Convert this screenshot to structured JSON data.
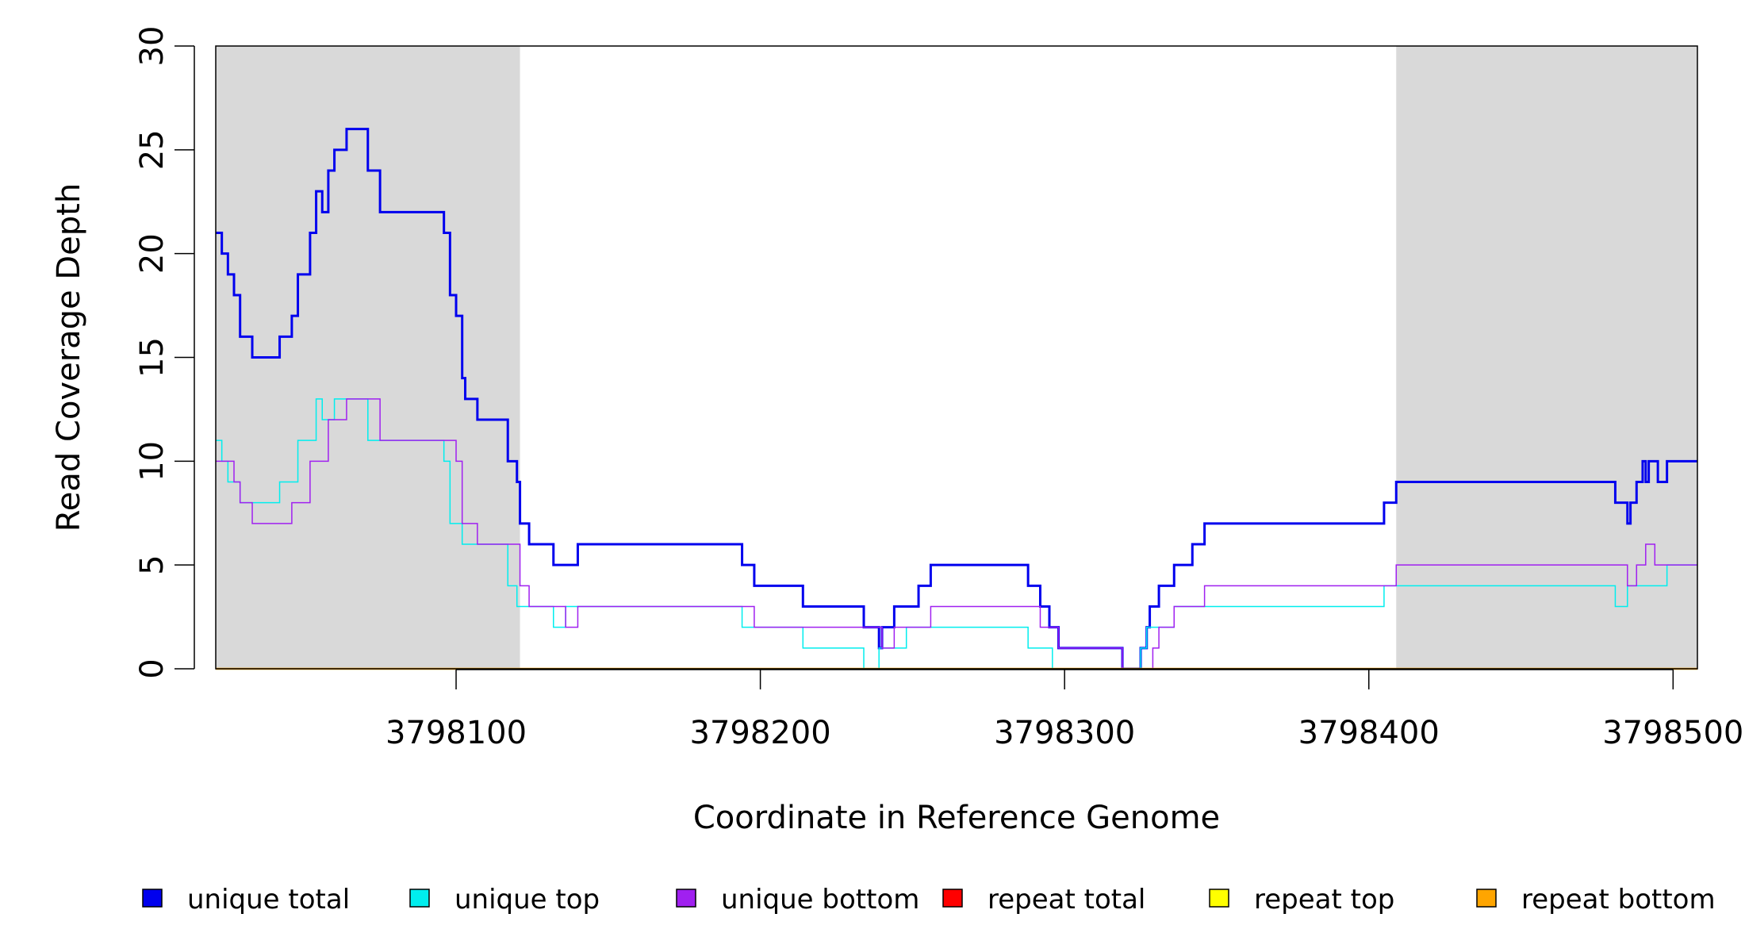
{
  "chart_data": {
    "type": "line",
    "step": true,
    "title": "",
    "xlabel": "Coordinate in Reference Genome",
    "ylabel": "Read Coverage Depth",
    "xlim": [
      3798021,
      3798508
    ],
    "ylim": [
      0,
      30
    ],
    "x_ticks": [
      3798100,
      3798200,
      3798300,
      3798400,
      3798500
    ],
    "x_tick_labels": [
      "3798100",
      "3798200",
      "3798300",
      "3798400",
      "3798500"
    ],
    "y_ticks": [
      0,
      5,
      10,
      15,
      20,
      25,
      30
    ],
    "y_tick_labels": [
      "0",
      "5",
      "10",
      "15",
      "20",
      "25",
      "30"
    ],
    "grid": false,
    "legend_position": "bottom",
    "shaded_regions": [
      {
        "x_start": 3798021,
        "x_end": 3798121,
        "color": "#d9d9d9"
      },
      {
        "x_start": 3798409,
        "x_end": 3798508,
        "color": "#d9d9d9"
      }
    ],
    "series": [
      {
        "name": "unique total",
        "color": "#0000ee",
        "line_width": 3,
        "points": [
          [
            3798021,
            21
          ],
          [
            3798023,
            20
          ],
          [
            3798025,
            19
          ],
          [
            3798027,
            18
          ],
          [
            3798029,
            16
          ],
          [
            3798033,
            15
          ],
          [
            3798042,
            16
          ],
          [
            3798046,
            17
          ],
          [
            3798048,
            19
          ],
          [
            3798052,
            21
          ],
          [
            3798054,
            23
          ],
          [
            3798056,
            22
          ],
          [
            3798058,
            24
          ],
          [
            3798060,
            25
          ],
          [
            3798064,
            26
          ],
          [
            3798071,
            24
          ],
          [
            3798075,
            22
          ],
          [
            3798096,
            21
          ],
          [
            3798098,
            18
          ],
          [
            3798100,
            17
          ],
          [
            3798102,
            14
          ],
          [
            3798103,
            13
          ],
          [
            3798107,
            12
          ],
          [
            3798117,
            10
          ],
          [
            3798120,
            9
          ],
          [
            3798121,
            7
          ],
          [
            3798124,
            6
          ],
          [
            3798132,
            5
          ],
          [
            3798140,
            6
          ],
          [
            3798194,
            5
          ],
          [
            3798198,
            4
          ],
          [
            3798214,
            3
          ],
          [
            3798234,
            2
          ],
          [
            3798239,
            1
          ],
          [
            3798240,
            2
          ],
          [
            3798244,
            3
          ],
          [
            3798252,
            4
          ],
          [
            3798256,
            5
          ],
          [
            3798288,
            4
          ],
          [
            3798292,
            3
          ],
          [
            3798295,
            2
          ],
          [
            3798298,
            1
          ],
          [
            3798319,
            0
          ],
          [
            3798325,
            1
          ],
          [
            3798327,
            2
          ],
          [
            3798328,
            3
          ],
          [
            3798331,
            4
          ],
          [
            3798336,
            5
          ],
          [
            3798342,
            6
          ],
          [
            3798346,
            7
          ],
          [
            3798405,
            8
          ],
          [
            3798409,
            9
          ],
          [
            3798481,
            8
          ],
          [
            3798485,
            7
          ],
          [
            3798486,
            8
          ],
          [
            3798488,
            9
          ],
          [
            3798490,
            10
          ],
          [
            3798491,
            9
          ],
          [
            3798492,
            10
          ],
          [
            3798495,
            9
          ],
          [
            3798498,
            10
          ],
          [
            3798508,
            10
          ]
        ]
      },
      {
        "name": "unique top",
        "color": "#00eeee",
        "line_width": 1.5,
        "points": [
          [
            3798021,
            11
          ],
          [
            3798023,
            10
          ],
          [
            3798025,
            9
          ],
          [
            3798029,
            8
          ],
          [
            3798042,
            9
          ],
          [
            3798048,
            11
          ],
          [
            3798054,
            13
          ],
          [
            3798056,
            12
          ],
          [
            3798060,
            13
          ],
          [
            3798071,
            11
          ],
          [
            3798096,
            10
          ],
          [
            3798098,
            7
          ],
          [
            3798102,
            6
          ],
          [
            3798117,
            4
          ],
          [
            3798120,
            3
          ],
          [
            3798132,
            2
          ],
          [
            3798136,
            3
          ],
          [
            3798194,
            2
          ],
          [
            3798214,
            1
          ],
          [
            3798234,
            0
          ],
          [
            3798239,
            1
          ],
          [
            3798248,
            2
          ],
          [
            3798288,
            1
          ],
          [
            3798296,
            0
          ],
          [
            3798325,
            1
          ],
          [
            3798327,
            2
          ],
          [
            3798336,
            3
          ],
          [
            3798405,
            4
          ],
          [
            3798481,
            3
          ],
          [
            3798485,
            4
          ],
          [
            3798498,
            5
          ],
          [
            3798508,
            5
          ]
        ]
      },
      {
        "name": "unique bottom",
        "color": "#a020f0",
        "line_width": 1.5,
        "points": [
          [
            3798021,
            10
          ],
          [
            3798027,
            9
          ],
          [
            3798029,
            8
          ],
          [
            3798033,
            7
          ],
          [
            3798046,
            8
          ],
          [
            3798052,
            10
          ],
          [
            3798058,
            12
          ],
          [
            3798064,
            13
          ],
          [
            3798075,
            11
          ],
          [
            3798100,
            10
          ],
          [
            3798102,
            7
          ],
          [
            3798107,
            6
          ],
          [
            3798121,
            4
          ],
          [
            3798124,
            3
          ],
          [
            3798136,
            2
          ],
          [
            3798140,
            3
          ],
          [
            3798198,
            2
          ],
          [
            3798240,
            1
          ],
          [
            3798244,
            2
          ],
          [
            3798256,
            3
          ],
          [
            3798292,
            2
          ],
          [
            3798298,
            1
          ],
          [
            3798319,
            0
          ],
          [
            3798329,
            1
          ],
          [
            3798331,
            2
          ],
          [
            3798336,
            3
          ],
          [
            3798346,
            4
          ],
          [
            3798409,
            5
          ],
          [
            3798485,
            4
          ],
          [
            3798488,
            5
          ],
          [
            3798491,
            6
          ],
          [
            3798494,
            5
          ],
          [
            3798508,
            5
          ]
        ]
      },
      {
        "name": "repeat total",
        "color": "#ff0000",
        "line_width": 2,
        "points": [
          [
            3798021,
            0
          ],
          [
            3798508,
            0
          ]
        ]
      },
      {
        "name": "repeat top",
        "color": "#ffff00",
        "line_width": 2,
        "points": [
          [
            3798021,
            0
          ],
          [
            3798508,
            0
          ]
        ]
      },
      {
        "name": "repeat bottom",
        "color": "#ffa500",
        "line_width": 2.5,
        "points": [
          [
            3798021,
            0
          ],
          [
            3798508,
            0
          ]
        ]
      }
    ]
  }
}
